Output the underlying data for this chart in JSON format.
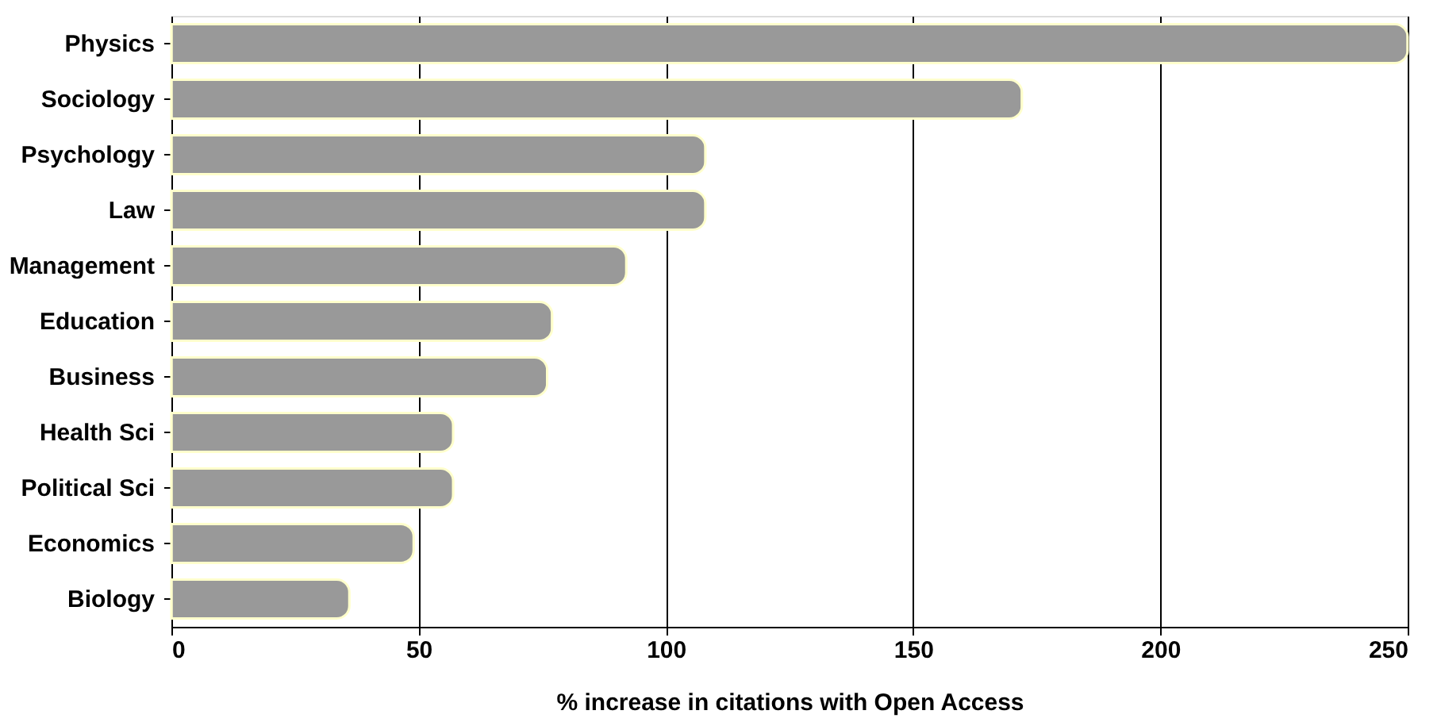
{
  "chart_data": {
    "type": "bar",
    "orientation": "horizontal",
    "xlabel": "% increase in citations with Open Access",
    "categories": [
      "Physics",
      "Sociology",
      "Psychology",
      "Law",
      "Management",
      "Education",
      "Business",
      "Health Sci",
      "Political Sci",
      "Economics",
      "Biology"
    ],
    "values": [
      250,
      172,
      108,
      108,
      92,
      77,
      76,
      57,
      57,
      49,
      36
    ],
    "color": "#999999",
    "xlim": [
      0,
      250
    ],
    "xticks": [
      0,
      50,
      100,
      150,
      200,
      250
    ],
    "grid": "x"
  }
}
